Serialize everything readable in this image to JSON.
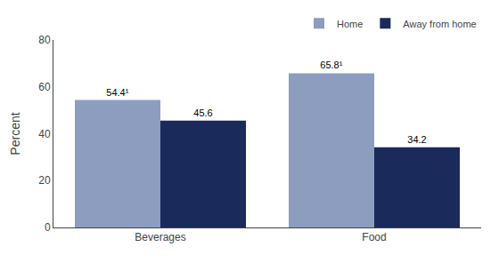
{
  "chart_data": {
    "type": "bar",
    "categories": [
      "Beverages",
      "Food"
    ],
    "series": [
      {
        "name": "Home",
        "color": "#8c9dc0",
        "values": [
          54.4,
          65.8
        ],
        "value_labels": [
          "54.4¹",
          "65.8¹"
        ]
      },
      {
        "name": "Away from home",
        "color": "#1a2a5a",
        "values": [
          45.6,
          34.2
        ]
      }
    ],
    "ylabel": "Percent",
    "ylim": [
      0,
      80
    ],
    "yticks": [
      0,
      20,
      40,
      60,
      80
    ],
    "grid": false,
    "legend": "upper right",
    "data_labels": true
  }
}
